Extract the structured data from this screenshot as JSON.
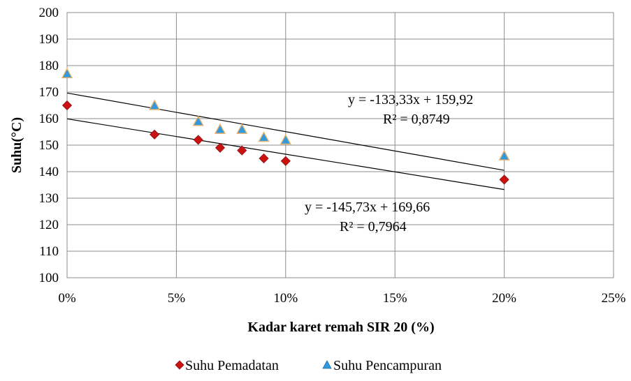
{
  "chart_data": {
    "type": "scatter",
    "xlabel": "Kadar karet remah SIR 20 (%)",
    "ylabel": "Suhu(°C)",
    "xlim": [
      0,
      0.25
    ],
    "ylim": [
      100,
      200
    ],
    "x_ticks": [
      {
        "value": 0,
        "label": "0%"
      },
      {
        "value": 0.05,
        "label": "5%"
      },
      {
        "value": 0.1,
        "label": "10%"
      },
      {
        "value": 0.15,
        "label": "15%"
      },
      {
        "value": 0.2,
        "label": "20%"
      },
      {
        "value": 0.25,
        "label": "25%"
      }
    ],
    "y_ticks": [
      100,
      110,
      120,
      130,
      140,
      150,
      160,
      170,
      180,
      190,
      200
    ],
    "grid": true,
    "legend_position": "bottom",
    "series": [
      {
        "name": "Suhu Pemadatan",
        "marker": "diamond",
        "color": "#cc1111",
        "x": [
          0,
          0.04,
          0.06,
          0.07,
          0.08,
          0.09,
          0.1,
          0.2
        ],
        "y": [
          165,
          154,
          152,
          149,
          148,
          145,
          144,
          137
        ]
      },
      {
        "name": "Suhu Pencampuran",
        "marker": "triangle",
        "color": "#3399dd",
        "x": [
          0,
          0.04,
          0.06,
          0.07,
          0.08,
          0.09,
          0.1,
          0.2
        ],
        "y": [
          177,
          165,
          159,
          156,
          156,
          153,
          152,
          146
        ]
      }
    ],
    "trendlines": [
      {
        "series": "Suhu Pencampuran",
        "slope": -145.73,
        "intercept": 169.66,
        "x_range": [
          0,
          0.2
        ]
      },
      {
        "series": "Suhu Pemadatan",
        "slope": -133.33,
        "intercept": 159.92,
        "x_range": [
          0,
          0.2
        ]
      }
    ],
    "annotations": [
      {
        "equation": "y = -133,33x + 159,92",
        "r2": "R² = 0,8749"
      },
      {
        "equation": "y = -145,73x + 169,66",
        "r2": "R² = 0,7964"
      }
    ]
  }
}
